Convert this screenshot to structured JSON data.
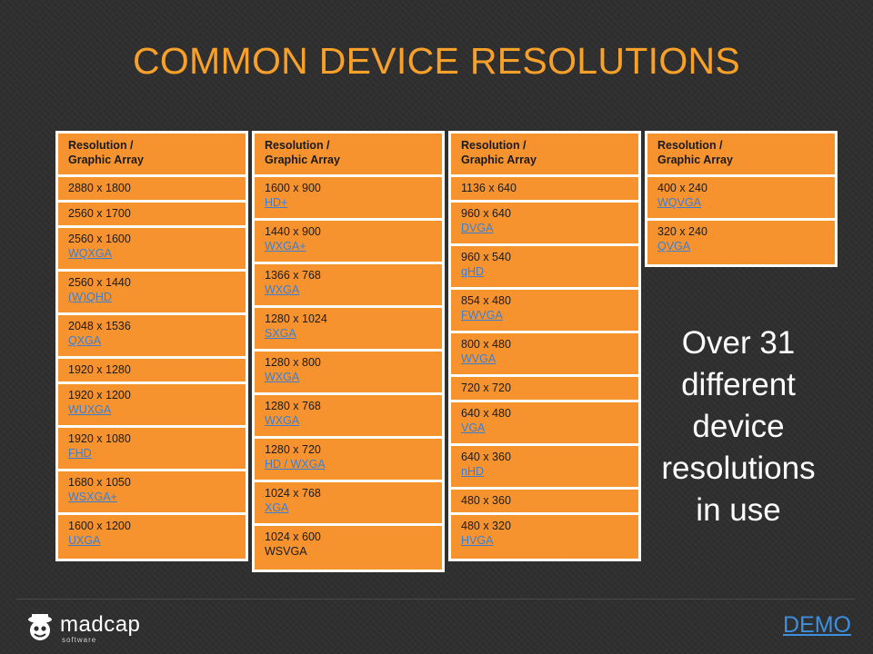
{
  "title": "COMMON DEVICE RESOLUTIONS",
  "columns": [
    {
      "header": "Resolution / Graphic Array",
      "rows": [
        {
          "value": "2880 x 1800"
        },
        {
          "value": "2560 x 1700"
        },
        {
          "value": "2560 x 1600",
          "link": "WQXGA"
        },
        {
          "value": "2560 x 1440",
          "link": "(W)QHD"
        },
        {
          "value": "2048 x 1536",
          "link": "QXGA"
        },
        {
          "value": "1920 x 1280"
        },
        {
          "value": "1920 x 1200",
          "link": "WUXGA"
        },
        {
          "value": "1920 x 1080",
          "link": "FHD"
        },
        {
          "value": "1680 x 1050",
          "link": "WSXGA+"
        },
        {
          "value": "1600 x 1200",
          "link": "UXGA"
        }
      ]
    },
    {
      "header": "Resolution / Graphic Array",
      "rows": [
        {
          "value": "1600 x 900",
          "link": "HD+"
        },
        {
          "value": "1440 x 900",
          "link": "WXGA+"
        },
        {
          "value": "1366 x 768",
          "link": "WXGA"
        },
        {
          "value": "1280 x 1024",
          "link": "SXGA"
        },
        {
          "value": "1280 x 800",
          "link": "WXGA"
        },
        {
          "value": "1280 x 768",
          "link": "WXGA"
        },
        {
          "value": "1280 x 720",
          "link": "HD / WXGA"
        },
        {
          "value": "1024 x 768",
          "link": "XGA"
        },
        {
          "value": "1024 x 600",
          "plain2": "WSVGA"
        }
      ]
    },
    {
      "header": "Resolution / Graphic Array",
      "rows": [
        {
          "value": "1136 x 640"
        },
        {
          "value": "960 x 640",
          "link": "DVGA"
        },
        {
          "value": "960 x 540",
          "link": "qHD"
        },
        {
          "value": "854 x 480",
          "link": "FWVGA"
        },
        {
          "value": "800 x 480",
          "link": "WVGA"
        },
        {
          "value": "720 x 720"
        },
        {
          "value": "640 x 480",
          "link": "VGA"
        },
        {
          "value": "640 x 360",
          "link": "nHD"
        },
        {
          "value": "480 x 360"
        },
        {
          "value": "480 x 320",
          "link": "HVGA"
        }
      ]
    },
    {
      "header": "Resolution / Graphic Array",
      "rows": [
        {
          "value": "400 x 240",
          "link": "WQVGA"
        },
        {
          "value": "320 x 240",
          "link": "QVGA"
        }
      ]
    }
  ],
  "callout": "Over 31 different device resolutions in use",
  "footer": {
    "logo_word": "madcap",
    "logo_sub": "software",
    "demo_link": "DEMO"
  },
  "colors": {
    "accent": "#f7a12a",
    "cell": "#f7932f",
    "link": "#3a7fd4",
    "background": "#2f2f2f"
  }
}
